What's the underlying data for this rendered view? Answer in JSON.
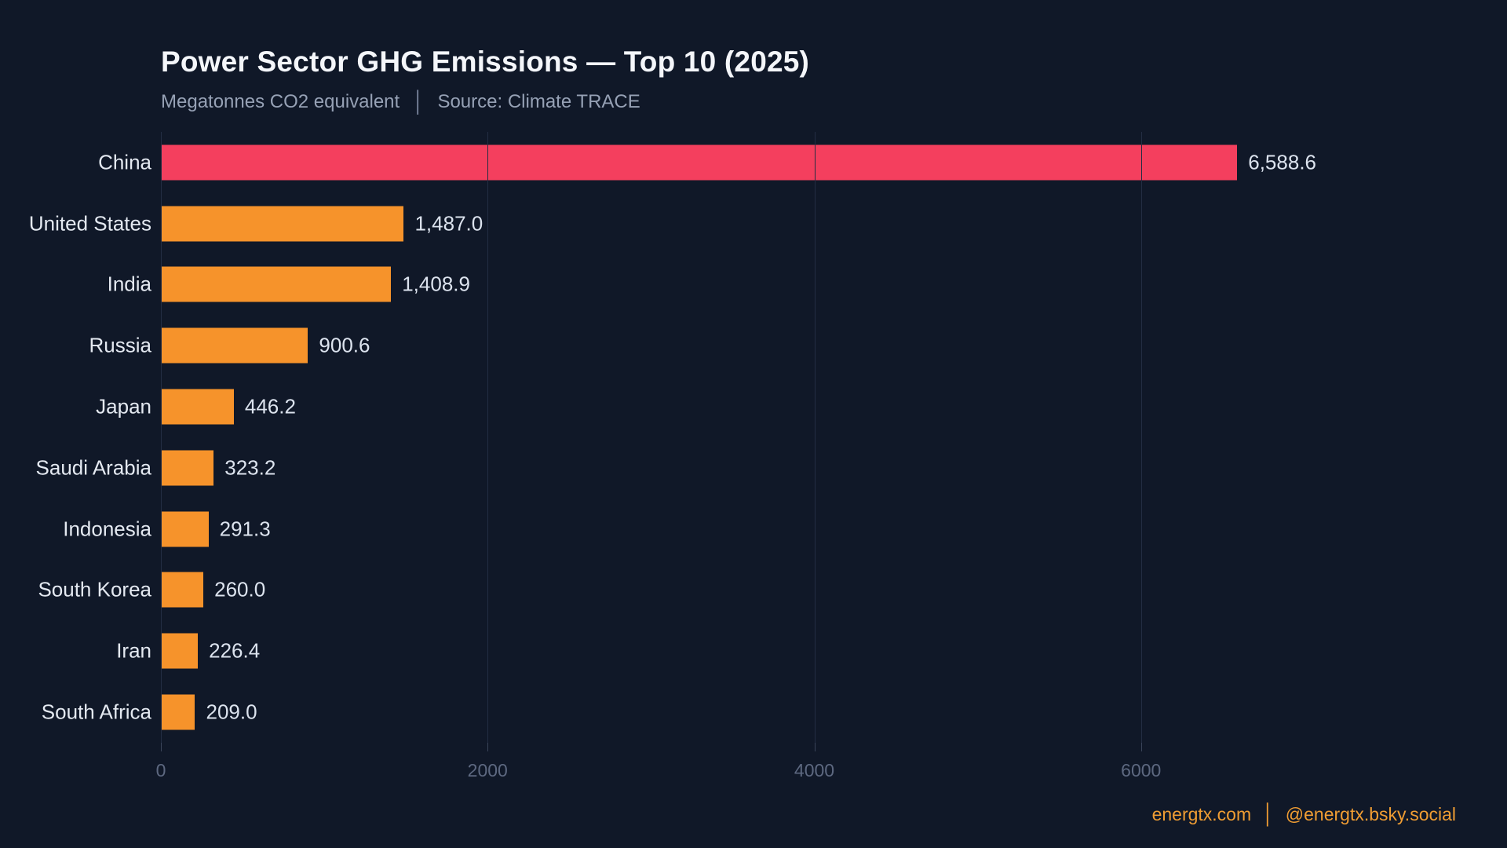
{
  "header": {
    "title": "Power Sector GHG Emissions — Top 10 (2025)",
    "subtitle_units": "Megatonnes CO2 equivalent",
    "subtitle_separator": "│",
    "subtitle_source": "Source: Climate TRACE"
  },
  "footer": {
    "site": "energtx.com",
    "separator": "│",
    "handle": "@energtx.bsky.social",
    "color": "#f09d33"
  },
  "colors": {
    "background": "#101828",
    "bar_orange": "#f6932b",
    "bar_highlight_pink": "#f43f5e",
    "title_text": "#f4f6fa",
    "subtitle_text": "#96a1b5",
    "category_label_text": "#e4e9f1",
    "value_label_text": "#dce3ee",
    "axis_tick_text": "#5d6880",
    "gridline": "#232d43"
  },
  "chart_data": {
    "type": "bar",
    "orientation": "horizontal",
    "title": "Power Sector GHG Emissions — Top 10 (2025)",
    "subtitle": "Megatonnes CO2 equivalent │ Source: Climate TRACE",
    "xlabel": "",
    "ylabel": "",
    "unit": "Megatonnes CO2 equivalent",
    "source": "Climate TRACE",
    "categories": [
      "China",
      "United States",
      "India",
      "Russia",
      "Japan",
      "Saudi Arabia",
      "Indonesia",
      "South Korea",
      "Iran",
      "South Africa"
    ],
    "values": [
      6588.6,
      1487.0,
      1408.9,
      900.6,
      446.2,
      323.2,
      291.3,
      260.0,
      226.4,
      209.0
    ],
    "value_labels": [
      "6,588.6",
      "1,487.0",
      "1,408.9",
      "900.6",
      "446.2",
      "323.2",
      "291.3",
      "260.0",
      "226.4",
      "209.0"
    ],
    "highlight_index": 0,
    "bar_color": "#f6932b",
    "highlight_color": "#f43f5e",
    "axis": {
      "min": 0,
      "max": 8000,
      "ticks": [
        0,
        2000,
        4000,
        6000
      ],
      "tick_labels": [
        "0",
        "2000",
        "4000",
        "6000"
      ]
    },
    "grid": "vertical-at-ticks",
    "legend": "none"
  }
}
